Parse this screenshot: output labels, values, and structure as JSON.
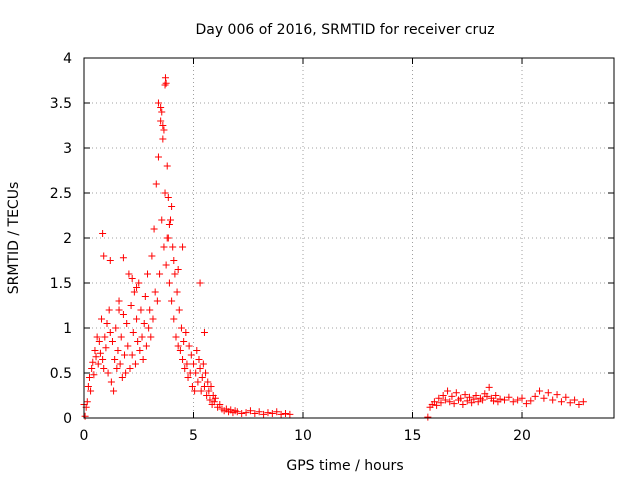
{
  "chart_data": {
    "type": "scatter",
    "title": "Day 006 of 2016, SRMTID for receiver cruz",
    "xlabel": "GPS time / hours",
    "ylabel": "SRMTID / TECUs",
    "xlim": [
      0,
      24.2
    ],
    "ylim": [
      0,
      4
    ],
    "xticks": [
      0,
      5,
      10,
      15,
      20
    ],
    "xtick_labels": [
      "0",
      "5",
      "10",
      "15",
      "20"
    ],
    "yticks": [
      0,
      0.5,
      1,
      1.5,
      2,
      2.5,
      3,
      3.5,
      4
    ],
    "ytick_labels": [
      "0",
      "0.5",
      "1",
      "1.5",
      "2",
      "2.5",
      "3",
      "3.5",
      "4"
    ],
    "grid": true,
    "marker": "plus",
    "series": [
      {
        "name": "SRMTID",
        "color": "#ff0000",
        "x": [
          0.0,
          0.05,
          0.1,
          0.15,
          0.2,
          0.25,
          0.3,
          0.35,
          0.4,
          0.45,
          0.5,
          0.55,
          0.6,
          0.65,
          0.7,
          0.75,
          0.8,
          0.85,
          0.9,
          0.95,
          1.0,
          1.05,
          1.1,
          1.15,
          1.2,
          1.25,
          1.3,
          1.35,
          1.4,
          1.45,
          1.5,
          1.55,
          1.6,
          1.65,
          1.7,
          1.75,
          1.8,
          1.85,
          1.9,
          1.95,
          2.0,
          2.05,
          2.1,
          2.15,
          2.2,
          2.25,
          2.3,
          2.35,
          2.4,
          2.45,
          2.5,
          2.55,
          2.6,
          2.65,
          2.7,
          2.75,
          2.8,
          2.85,
          2.9,
          2.95,
          3.0,
          3.05,
          3.1,
          3.15,
          3.2,
          3.25,
          3.3,
          3.35,
          3.4,
          3.45,
          3.5,
          3.55,
          3.6,
          3.65,
          3.7,
          3.75,
          3.8,
          3.85,
          3.9,
          3.95,
          4.0,
          4.05,
          4.1,
          4.15,
          4.2,
          4.25,
          4.3,
          4.35,
          4.4,
          4.45,
          4.5,
          4.55,
          4.6,
          4.65,
          4.7,
          4.75,
          4.8,
          4.85,
          4.9,
          4.95,
          5.0,
          5.05,
          5.1,
          5.15,
          5.2,
          5.25,
          5.3,
          5.35,
          5.4,
          5.45,
          5.5,
          5.55,
          5.6,
          5.65,
          5.7,
          5.75,
          5.8,
          5.85,
          5.9,
          5.95,
          6.0,
          6.1,
          6.2,
          6.3,
          6.4,
          6.5,
          6.6,
          6.7,
          6.8,
          6.9,
          7.0,
          7.2,
          7.4,
          7.6,
          7.8,
          8.0,
          8.2,
          8.4,
          8.6,
          8.8,
          9.0,
          9.2,
          9.4,
          0.85,
          0.9,
          1.2,
          1.6,
          1.8,
          2.2,
          2.4,
          3.4,
          3.5,
          3.55,
          3.6,
          3.65,
          3.7,
          3.72,
          3.75,
          3.8,
          3.85,
          3.9,
          4.0,
          4.1,
          4.3,
          4.5,
          5.3,
          5.5,
          15.7,
          15.8,
          15.9,
          16.0,
          16.1,
          16.2,
          16.3,
          16.4,
          16.5,
          16.6,
          16.7,
          16.8,
          16.9,
          17.0,
          17.1,
          17.2,
          17.3,
          17.4,
          17.5,
          17.6,
          17.7,
          17.8,
          17.9,
          18.0,
          18.1,
          18.2,
          18.3,
          18.4,
          18.5,
          18.6,
          18.7,
          18.8,
          18.9,
          19.0,
          19.2,
          19.4,
          19.6,
          19.8,
          20.0,
          20.2,
          20.4,
          20.6,
          20.8,
          21.0,
          21.2,
          21.4,
          21.6,
          21.8,
          22.0,
          22.2,
          22.4,
          22.6,
          22.8
        ],
        "y": [
          0.15,
          0.02,
          0.12,
          0.18,
          0.35,
          0.45,
          0.3,
          0.55,
          0.62,
          0.48,
          0.75,
          0.68,
          0.9,
          0.6,
          0.85,
          0.72,
          1.1,
          0.65,
          0.55,
          0.9,
          0.78,
          1.05,
          0.5,
          1.2,
          0.95,
          0.4,
          0.85,
          0.3,
          0.65,
          1.0,
          0.55,
          0.75,
          1.3,
          0.6,
          0.9,
          0.45,
          1.15,
          0.7,
          0.5,
          1.05,
          0.8,
          1.6,
          0.55,
          1.25,
          0.7,
          0.95,
          1.4,
          0.6,
          1.1,
          0.85,
          1.5,
          0.75,
          1.2,
          0.9,
          0.65,
          1.05,
          1.35,
          0.8,
          1.6,
          1.0,
          1.2,
          0.9,
          1.8,
          1.1,
          2.1,
          1.4,
          2.6,
          1.3,
          2.9,
          1.6,
          3.3,
          2.2,
          3.1,
          1.9,
          2.5,
          1.7,
          2.8,
          2.0,
          1.5,
          2.2,
          1.3,
          1.9,
          1.1,
          1.6,
          0.9,
          1.4,
          0.8,
          1.2,
          0.75,
          1.0,
          0.65,
          0.85,
          0.55,
          0.95,
          0.6,
          0.45,
          0.8,
          0.5,
          0.7,
          0.35,
          0.6,
          0.3,
          0.5,
          0.75,
          0.4,
          0.65,
          0.55,
          0.3,
          0.45,
          0.6,
          0.35,
          0.5,
          0.25,
          0.4,
          0.3,
          0.2,
          0.35,
          0.15,
          0.25,
          0.18,
          0.22,
          0.12,
          0.15,
          0.1,
          0.08,
          0.1,
          0.07,
          0.09,
          0.06,
          0.08,
          0.07,
          0.05,
          0.06,
          0.08,
          0.05,
          0.07,
          0.04,
          0.06,
          0.05,
          0.07,
          0.04,
          0.05,
          0.04,
          2.05,
          1.8,
          1.75,
          1.2,
          1.78,
          1.55,
          1.45,
          3.5,
          3.45,
          3.4,
          3.25,
          3.2,
          3.7,
          3.78,
          3.72,
          2.0,
          2.45,
          2.15,
          2.35,
          1.75,
          1.65,
          1.9,
          1.5,
          0.95,
          0.01,
          0.12,
          0.15,
          0.18,
          0.14,
          0.22,
          0.17,
          0.25,
          0.2,
          0.3,
          0.18,
          0.24,
          0.16,
          0.28,
          0.2,
          0.22,
          0.15,
          0.26,
          0.19,
          0.23,
          0.17,
          0.21,
          0.25,
          0.18,
          0.22,
          0.2,
          0.27,
          0.24,
          0.34,
          0.22,
          0.19,
          0.25,
          0.18,
          0.21,
          0.2,
          0.23,
          0.18,
          0.2,
          0.22,
          0.16,
          0.19,
          0.24,
          0.3,
          0.22,
          0.28,
          0.2,
          0.26,
          0.18,
          0.23,
          0.17,
          0.2,
          0.15,
          0.18
        ]
      }
    ]
  }
}
